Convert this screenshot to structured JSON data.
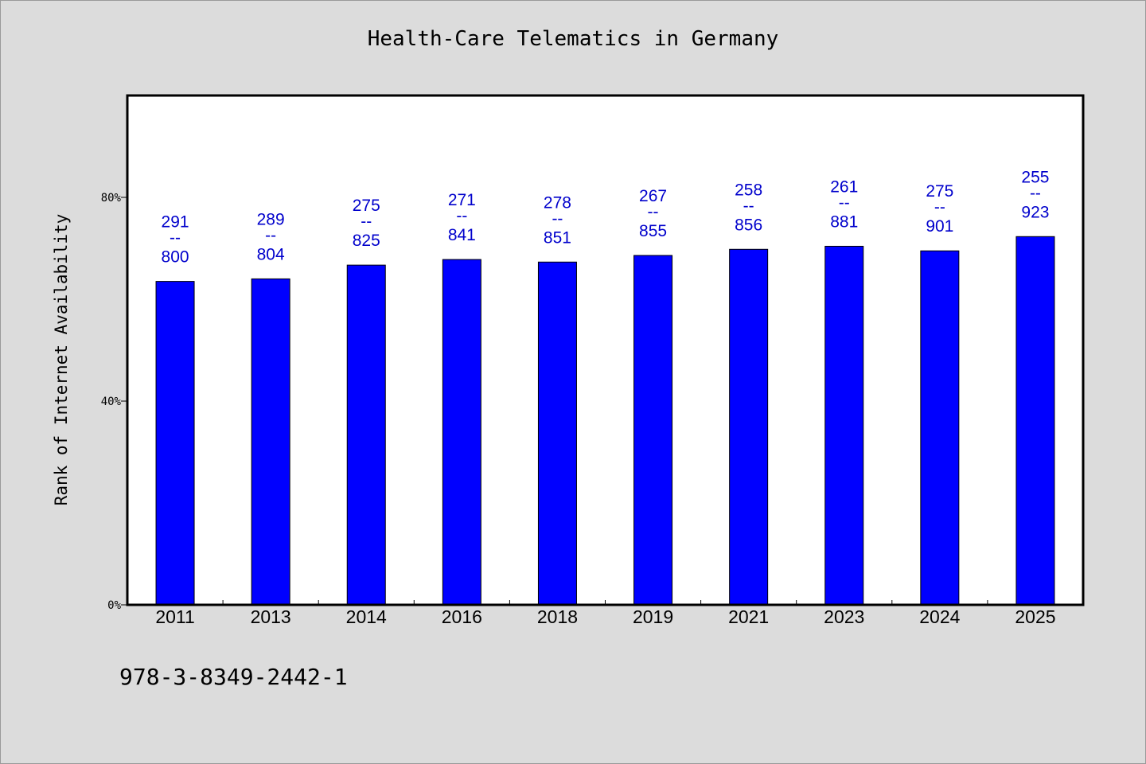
{
  "chart_data": {
    "type": "bar",
    "title": "Health-Care Telematics in Germany",
    "xlabel": "",
    "ylabel": "Rank of Internet Availability",
    "categories": [
      "2011",
      "2013",
      "2014",
      "2016",
      "2018",
      "2019",
      "2021",
      "2023",
      "2024",
      "2025"
    ],
    "values": [
      63.5,
      64.0,
      66.7,
      67.8,
      67.3,
      68.6,
      69.8,
      70.4,
      69.5,
      72.3
    ],
    "label_top": [
      "291",
      "289",
      "275",
      "271",
      "278",
      "267",
      "258",
      "261",
      "275",
      "255"
    ],
    "label_sep": "--",
    "label_bottom": [
      "800",
      "804",
      "825",
      "841",
      "851",
      "855",
      "856",
      "881",
      "901",
      "923"
    ],
    "yticks": [
      0,
      40,
      80
    ],
    "ytick_labels": [
      "0%",
      "40%",
      "80%"
    ],
    "ylim": [
      0,
      100
    ],
    "grid": false,
    "legend": "none",
    "bar_color": "#0000ff",
    "label_color": "#0000cc",
    "plot_background": "#ffffff"
  },
  "footer": {
    "isbn": "978-3-8349-2442-1"
  }
}
